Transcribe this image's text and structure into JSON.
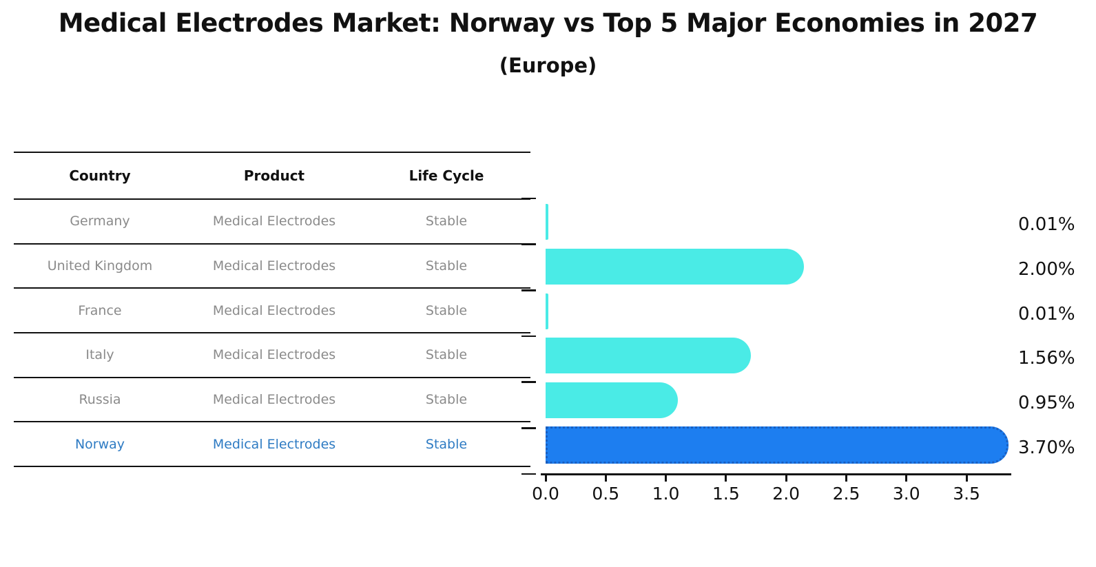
{
  "title": "Medical Electrodes Market: Norway vs Top 5 Major Economies in 2027",
  "subtitle": "(Europe)",
  "table": {
    "headers": [
      "Country",
      "Product",
      "Life Cycle"
    ],
    "rows": [
      {
        "country": "Germany",
        "product": "Medical Electrodes",
        "life_cycle": "Stable",
        "highlight": false
      },
      {
        "country": "United Kingdom",
        "product": "Medical Electrodes",
        "life_cycle": "Stable",
        "highlight": false
      },
      {
        "country": "France",
        "product": "Medical Electrodes",
        "life_cycle": "Stable",
        "highlight": false
      },
      {
        "country": "Italy",
        "product": "Medical Electrodes",
        "life_cycle": "Stable",
        "highlight": false
      },
      {
        "country": "Russia",
        "product": "Medical Electrodes",
        "life_cycle": "Stable",
        "highlight": false
      },
      {
        "country": "Norway",
        "product": "Medical Electrodes",
        "life_cycle": "Stable",
        "highlight": true
      }
    ]
  },
  "chart_data": {
    "type": "bar",
    "orientation": "horizontal",
    "title": "Medical Electrodes Market: Norway vs Top 5 Major Economies in 2027",
    "subtitle": "(Europe)",
    "categories": [
      "Germany",
      "United Kingdom",
      "France",
      "Italy",
      "Russia",
      "Norway"
    ],
    "values": [
      0.01,
      2.0,
      0.01,
      1.56,
      0.95,
      3.7
    ],
    "value_labels": [
      "0.01%",
      "2.00%",
      "0.01%",
      "1.56%",
      "0.95%",
      "3.70%"
    ],
    "x_tick_labels": [
      "0.0",
      "0.5",
      "1.0",
      "1.5",
      "2.0",
      "2.5",
      "3.0",
      "3.5"
    ],
    "x_tick_values": [
      0.0,
      0.5,
      1.0,
      1.5,
      2.0,
      2.5,
      3.0,
      3.5
    ],
    "xlim": [
      0,
      3.87
    ],
    "xlabel": "",
    "ylabel": "",
    "grid": false,
    "legend": false,
    "highlight_index": 5
  },
  "colors": {
    "bar": "#4AEBE6",
    "highlight_bar": "#1D7EF0",
    "highlight_bar_border": "#1A5FC0",
    "row_text": "#8A8A8A",
    "highlight_text": "#2E7BC3",
    "heading_text": "#111111",
    "axis": "#111111",
    "background": "#FFFFFF"
  }
}
